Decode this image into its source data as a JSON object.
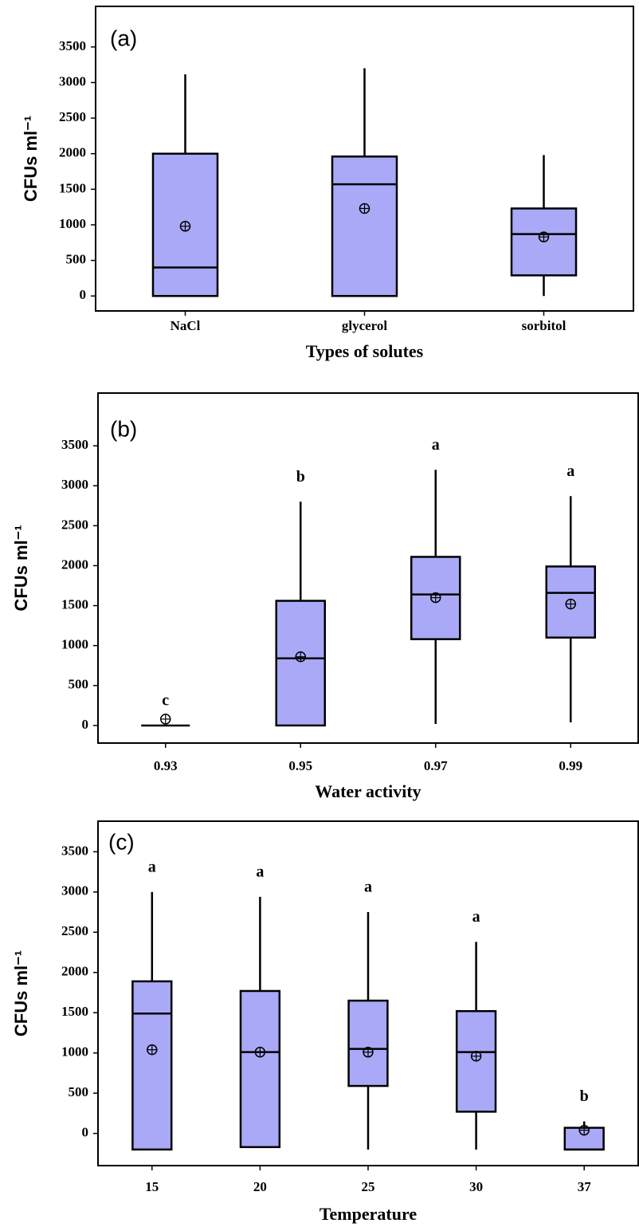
{
  "chart_data": [
    {
      "type": "box",
      "label": "(a)",
      "x_label": "Types of solutes",
      "y_label": "CFUs ml⁻¹",
      "categories": [
        "NaCl",
        "glycerol",
        "sorbitol"
      ],
      "low": [
        0,
        0,
        0
      ],
      "q1": [
        0,
        0,
        290
      ],
      "median": [
        400,
        1570,
        870
      ],
      "q3": [
        2000,
        1960,
        1230
      ],
      "high": [
        3115,
        3200,
        1980
      ],
      "mean": [
        980,
        1230,
        830
      ],
      "color": "#a9a9f7",
      "ylim": [
        -210,
        4070
      ],
      "yticks": [
        0,
        500,
        1000,
        1500,
        2000,
        2500,
        3000,
        3500
      ]
    },
    {
      "type": "box",
      "label": "(b)",
      "x_label": "Water activity",
      "y_label": "CFUs ml⁻¹",
      "categories": [
        "0.93",
        "0.95",
        "0.97",
        "0.99"
      ],
      "low": [
        0,
        0,
        20,
        40
      ],
      "q1": [
        0,
        0,
        1080,
        1100
      ],
      "median": [
        0,
        840,
        1640,
        1660
      ],
      "q3": [
        0,
        1560,
        2110,
        1990
      ],
      "high": [
        0,
        2800,
        3200,
        2870
      ],
      "mean": [
        80,
        860,
        1600,
        1520
      ],
      "letters": [
        "c",
        "b",
        "a",
        "a"
      ],
      "color": "#a9a9f7",
      "ylim": [
        -220,
        4160
      ],
      "yticks": [
        0,
        500,
        1000,
        1500,
        2000,
        2500,
        3000,
        3500
      ]
    },
    {
      "type": "box",
      "label": "(c)",
      "x_label": "Temperature",
      "y_label": "CFUs ml⁻¹",
      "categories": [
        "15",
        "20",
        "25",
        "30",
        "37"
      ],
      "low": [
        -200,
        -170,
        -200,
        -200,
        -200
      ],
      "q1": [
        -200,
        -170,
        590,
        270,
        -200
      ],
      "median": [
        1490,
        1010,
        1050,
        1010,
        -200
      ],
      "q3": [
        1890,
        1770,
        1650,
        1520,
        70
      ],
      "high": [
        3000,
        2940,
        2750,
        2380,
        150
      ],
      "mean": [
        1040,
        1010,
        1010,
        960,
        40
      ],
      "letters": [
        "a",
        "a",
        "a",
        "a",
        "b"
      ],
      "color": "#a9a9f7",
      "ylim": [
        -400,
        3880
      ],
      "yticks": [
        0,
        500,
        1000,
        1500,
        2000,
        2500,
        3000,
        3500
      ]
    }
  ]
}
